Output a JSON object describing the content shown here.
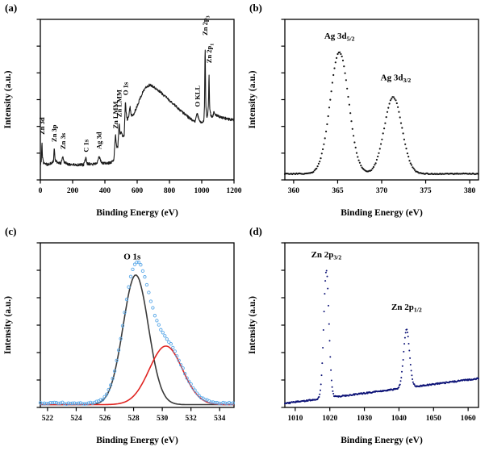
{
  "chart_data": [
    {
      "id": "a",
      "panel_label": "(a)",
      "type": "line",
      "xlabel": "Binding Energy (eV)",
      "ylabel": "Intensity (a.u.)",
      "xlim": [
        0,
        1200
      ],
      "xticks": [
        0,
        200,
        400,
        600,
        800,
        1000,
        1200
      ],
      "ylim": [
        0,
        1.1
      ],
      "series": [
        {
          "name": "XPS survey spectrum",
          "style": "line",
          "color": "#1b1b1b",
          "width": 1.1,
          "step": 1.5,
          "noise": 0.009,
          "anchors": [
            [
              0,
              0.1
            ],
            [
              6,
              0.13
            ],
            [
              10,
              0.27
            ],
            [
              13,
              0.16
            ],
            [
              20,
              0.115
            ],
            [
              45,
              0.105
            ],
            [
              70,
              0.115
            ],
            [
              82,
              0.13
            ],
            [
              86,
              0.22
            ],
            [
              92,
              0.135
            ],
            [
              110,
              0.115
            ],
            [
              128,
              0.115
            ],
            [
              139,
              0.165
            ],
            [
              147,
              0.12
            ],
            [
              170,
              0.108
            ],
            [
              220,
              0.103
            ],
            [
              268,
              0.103
            ],
            [
              282,
              0.15
            ],
            [
              290,
              0.112
            ],
            [
              320,
              0.107
            ],
            [
              350,
              0.112
            ],
            [
              363,
              0.165
            ],
            [
              370,
              0.145
            ],
            [
              378,
              0.118
            ],
            [
              405,
              0.112
            ],
            [
              435,
              0.118
            ],
            [
              455,
              0.135
            ],
            [
              466,
              0.31
            ],
            [
              472,
              0.23
            ],
            [
              480,
              0.225
            ],
            [
              488,
              0.39
            ],
            [
              494,
              0.31
            ],
            [
              502,
              0.33
            ],
            [
              511,
              0.29
            ],
            [
              520,
              0.31
            ],
            [
              527,
              0.54
            ],
            [
              532,
              0.46
            ],
            [
              539,
              0.41
            ],
            [
              548,
              0.44
            ],
            [
              556,
              0.5
            ],
            [
              563,
              0.44
            ],
            [
              578,
              0.45
            ],
            [
              598,
              0.5
            ],
            [
              618,
              0.56
            ],
            [
              638,
              0.61
            ],
            [
              658,
              0.64
            ],
            [
              678,
              0.65
            ],
            [
              700,
              0.64
            ],
            [
              725,
              0.62
            ],
            [
              755,
              0.59
            ],
            [
              785,
              0.56
            ],
            [
              815,
              0.53
            ],
            [
              845,
              0.5
            ],
            [
              875,
              0.47
            ],
            [
              905,
              0.44
            ],
            [
              935,
              0.415
            ],
            [
              958,
              0.4
            ],
            [
              972,
              0.455
            ],
            [
              980,
              0.425
            ],
            [
              992,
              0.395
            ],
            [
              1006,
              0.395
            ],
            [
              1013,
              0.41
            ],
            [
              1017,
              0.5
            ],
            [
              1021,
              0.95
            ],
            [
              1025,
              0.52
            ],
            [
              1031,
              0.43
            ],
            [
              1037,
              0.45
            ],
            [
              1042,
              0.52
            ],
            [
              1045,
              0.76
            ],
            [
              1049,
              0.5
            ],
            [
              1056,
              0.445
            ],
            [
              1066,
              0.43
            ],
            [
              1076,
              0.465
            ],
            [
              1088,
              0.445
            ],
            [
              1105,
              0.435
            ],
            [
              1135,
              0.425
            ],
            [
              1170,
              0.415
            ],
            [
              1200,
              0.41
            ]
          ]
        }
      ],
      "peak_labels": [
        {
          "text": "Zn 3d",
          "x": 10,
          "y": 0.31,
          "rotate": true
        },
        {
          "text": "Zn 3p",
          "x": 86,
          "y": 0.26,
          "rotate": true
        },
        {
          "text": "Zn 3s",
          "x": 139,
          "y": 0.21,
          "rotate": true
        },
        {
          "text": "C 1s",
          "x": 282,
          "y": 0.19,
          "rotate": true
        },
        {
          "text": "Ag 3d",
          "x": 363,
          "y": 0.21,
          "rotate": true
        },
        {
          "text": "Zn LMM",
          "x": 466,
          "y": 0.35,
          "rotate": true
        },
        {
          "text": "Zn LMM",
          "x": 488,
          "y": 0.43,
          "rotate": true
        },
        {
          "text": "O 1s",
          "x": 527,
          "y": 0.58,
          "rotate": true
        },
        {
          "text": "O KLL",
          "x": 972,
          "y": 0.5,
          "rotate": true
        },
        {
          "text": "Zn 2p",
          "sub": "3",
          "x": 1021,
          "y": 0.99,
          "rotate": true
        },
        {
          "text": "Zn 2p",
          "sub": "1",
          "x": 1046,
          "y": 0.8,
          "rotate": true
        }
      ]
    },
    {
      "id": "b",
      "panel_label": "(b)",
      "type": "scatter",
      "xlabel": "Binding Energy (eV)",
      "ylabel": "Intensity (a.u.)",
      "xlim": [
        359,
        381
      ],
      "xticks": [
        360,
        365,
        370,
        375,
        380
      ],
      "ylim": [
        0,
        1.32
      ],
      "series": [
        {
          "name": "Ag 3d spectrum",
          "style": "dots",
          "color": "#141414",
          "r": 1.1,
          "step": 0.12,
          "noise": 0.004,
          "baseline": [
            0.05,
            0.05
          ],
          "components": [
            {
              "center": 365.2,
              "amp": 1.0,
              "sigma": 1.05
            },
            {
              "center": 371.3,
              "amp": 0.63,
              "sigma": 1.0
            }
          ]
        }
      ],
      "peak_labels": [
        {
          "text": "Ag 3d",
          "sub": "5/2",
          "x": 365.2,
          "y": 1.16
        },
        {
          "text": "Ag 3d",
          "sub": "3/2",
          "x": 371.6,
          "y": 0.82
        }
      ]
    },
    {
      "id": "c",
      "panel_label": "(c)",
      "type": "line",
      "xlabel": "Binding Energy (eV)",
      "ylabel": "Intensity (a.u.)",
      "xlim": [
        521.5,
        535
      ],
      "xticks": [
        522,
        524,
        526,
        528,
        530,
        532,
        534
      ],
      "ylim": [
        0,
        1.18
      ],
      "series": [
        {
          "name": "O 1s fit peak 1",
          "style": "line",
          "color": "#3a3a3a",
          "width": 1.6,
          "step": 0.1,
          "baseline": [
            0.02,
            0.02
          ],
          "components": [
            {
              "center": 528.15,
              "amp": 0.93,
              "sigma": 0.88
            }
          ]
        },
        {
          "name": "O 1s fit peak 2",
          "style": "line",
          "color": "#e02421",
          "width": 1.6,
          "step": 0.1,
          "baseline": [
            0.02,
            0.02
          ],
          "components": [
            {
              "center": 530.25,
              "amp": 0.42,
              "sigma": 1.15
            }
          ]
        },
        {
          "name": "O 1s envelope",
          "style": "circles",
          "color": "#5aa8e8",
          "r": 1.7,
          "step": 0.14,
          "noise": 0.006,
          "baseline": [
            0.03,
            0.03
          ],
          "components": [
            {
              "center": 528.15,
              "amp": 0.93,
              "sigma": 0.88
            },
            {
              "center": 530.25,
              "amp": 0.42,
              "sigma": 1.15
            }
          ]
        }
      ],
      "peak_labels": [
        {
          "text": "O 1s",
          "x": 527.9,
          "y": 1.06
        }
      ]
    },
    {
      "id": "d",
      "panel_label": "(d)",
      "type": "scatter",
      "xlabel": "Binding Energy (eV)",
      "ylabel": "Intensity (a.u.)",
      "xlim": [
        1007,
        1063
      ],
      "xticks": [
        1010,
        1020,
        1030,
        1040,
        1050,
        1060
      ],
      "ylim": [
        0,
        1.25
      ],
      "series": [
        {
          "name": "Zn 2p spectrum",
          "style": "dots",
          "color": "#0d1377",
          "r": 1.0,
          "step": 0.18,
          "noise": 0.005,
          "baseline": [
            0.03,
            0.22
          ],
          "components": [
            {
              "center": 1019.0,
              "amp": 0.97,
              "sigma": 0.75
            },
            {
              "center": 1042.2,
              "amp": 0.44,
              "sigma": 0.85
            }
          ]
        }
      ],
      "peak_labels": [
        {
          "text": "Zn 2p",
          "sub": "3/2",
          "x": 1019,
          "y": 1.14
        },
        {
          "text": "Zn 2p",
          "sub": "1/2",
          "x": 1042.2,
          "y": 0.74
        }
      ]
    }
  ]
}
